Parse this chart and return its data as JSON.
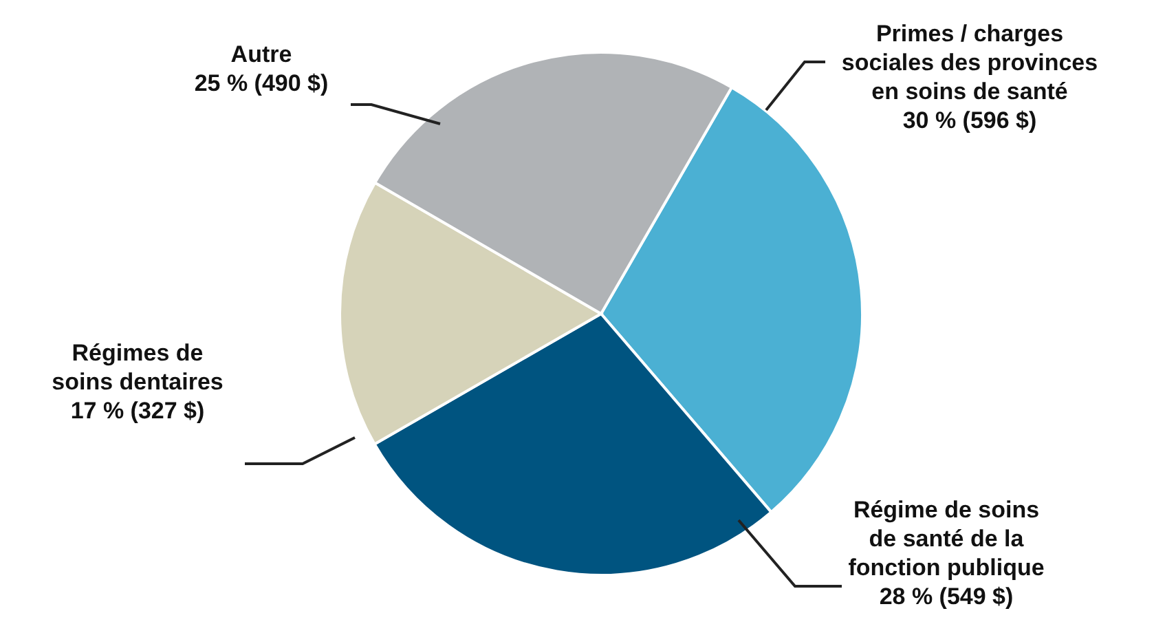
{
  "chart_data": {
    "type": "pie",
    "categories": [
      "Primes / charges sociales des provinces en soins de santé",
      "Régime de soins de santé de la fonction publique",
      "Régimes de soins dentaires",
      "Autre"
    ],
    "values": [
      596,
      549,
      327,
      490
    ],
    "value_labels": [
      "30 % (596 $)",
      "28 % (549 $)",
      "17 % (327 $)",
      "25 % (490 $)"
    ],
    "colors": [
      "#4bb0d3",
      "#005480",
      "#d6d3b9",
      "#b0b3b6"
    ]
  }
}
